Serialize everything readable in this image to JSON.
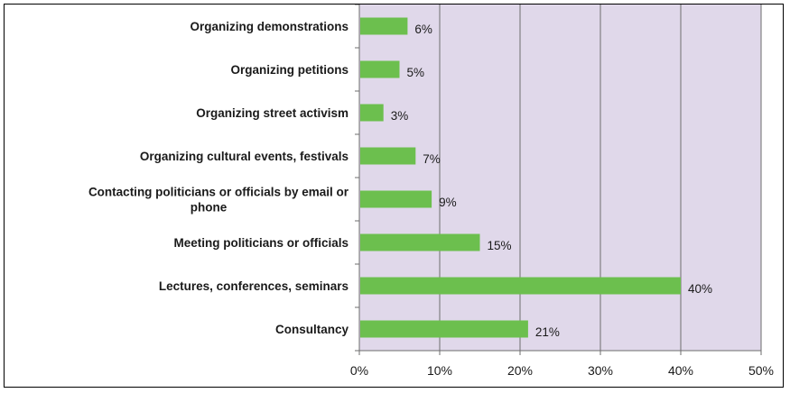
{
  "chart_data": {
    "type": "bar",
    "orientation": "horizontal",
    "categories": [
      "Organizing demonstrations",
      "Organizing petitions",
      "Organizing street activism",
      "Organizing cultural events, festivals",
      "Contacting politicians or officials by email or phone",
      "Meeting politicians or officials",
      "Lectures, conferences, seminars",
      "Consultancy"
    ],
    "category_lines": [
      [
        "Organizing demonstrations"
      ],
      [
        "Organizing petitions"
      ],
      [
        "Organizing street activism"
      ],
      [
        "Organizing cultural events, festivals"
      ],
      [
        "Contacting politicians or officials by email or",
        "phone"
      ],
      [
        "Meeting politicians or officials"
      ],
      [
        "Lectures, conferences, seminars"
      ],
      [
        "Consultancy"
      ]
    ],
    "values": [
      6,
      5,
      3,
      7,
      9,
      15,
      40,
      21
    ],
    "value_labels": [
      "6%",
      "5%",
      "3%",
      "7%",
      "9%",
      "15%",
      "40%",
      "21%"
    ],
    "xlim": [
      0,
      50
    ],
    "xticks": [
      0,
      10,
      20,
      30,
      40,
      50
    ],
    "xtick_labels": [
      "0%",
      "10%",
      "20%",
      "30%",
      "40%",
      "50%"
    ],
    "grid": true,
    "colors": {
      "bar": "#6cbf4e",
      "plot_background": "#e0d8ea",
      "grid": "#6e6e6e"
    }
  }
}
